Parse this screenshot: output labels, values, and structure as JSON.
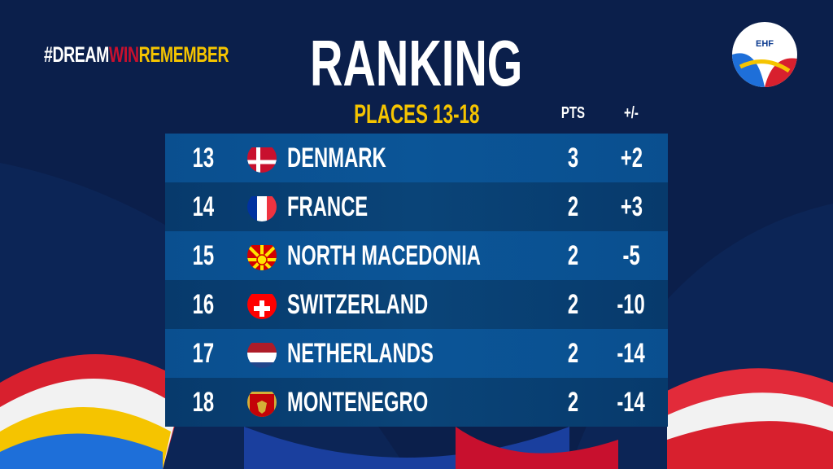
{
  "tagline": {
    "part1": "#DREAM",
    "part2": "WIN",
    "part3": "REMEMBER"
  },
  "title": "RANKING",
  "subtitle": "PLACES 13-18",
  "columns": {
    "pts": "PTS",
    "diff": "+/-"
  },
  "logo": {
    "text": "EHF"
  },
  "colors": {
    "navy": "#0b1f4b",
    "row_light": "#0a4f8f",
    "row_dark": "#073a6c",
    "yellow": "#f5c400",
    "red": "#c8102e"
  },
  "rows": [
    {
      "rank": "13",
      "country": "DENMARK",
      "pts": "3",
      "diff": "+2",
      "flag": "denmark-flag"
    },
    {
      "rank": "14",
      "country": "FRANCE",
      "pts": "2",
      "diff": "+3",
      "flag": "france-flag"
    },
    {
      "rank": "15",
      "country": "NORTH MACEDONIA",
      "pts": "2",
      "diff": "-5",
      "flag": "north-macedonia-flag"
    },
    {
      "rank": "16",
      "country": "SWITZERLAND",
      "pts": "2",
      "diff": "-10",
      "flag": "switzerland-flag"
    },
    {
      "rank": "17",
      "country": "NETHERLANDS",
      "pts": "2",
      "diff": "-14",
      "flag": "netherlands-flag"
    },
    {
      "rank": "18",
      "country": "MONTENEGRO",
      "pts": "2",
      "diff": "-14",
      "flag": "montenegro-flag"
    }
  ]
}
